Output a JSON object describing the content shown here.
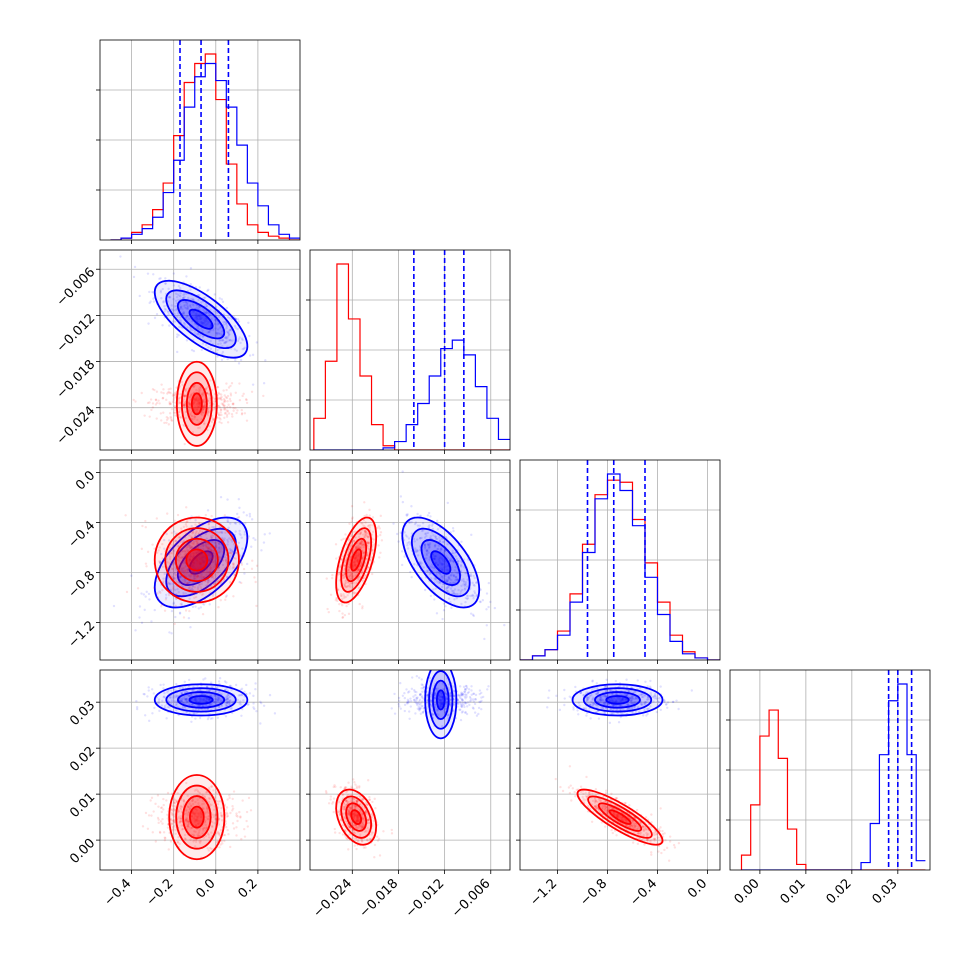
{
  "chart_data": {
    "type": "corner",
    "ndim": 4,
    "grid": true,
    "series": [
      {
        "color": "#0000ff",
        "mean": [
          -0.07,
          -0.0125,
          -0.72,
          0.0305
        ],
        "sd": [
          0.11,
          0.0025,
          0.18,
          0.0017
        ],
        "corr": [
          [
            1,
            -0.7,
            0.55,
            0.0
          ],
          [
            -0.7,
            1,
            -0.6,
            0.0
          ],
          [
            0.55,
            -0.6,
            1,
            0.0
          ],
          [
            0.0,
            0.0,
            0.0,
            1
          ]
        ],
        "quantiles_16_50_84": [
          [
            -0.17,
            -0.07,
            0.06
          ],
          [
            -0.016,
            -0.012,
            -0.0095
          ],
          [
            -0.96,
            -0.75,
            -0.5
          ],
          [
            0.028,
            0.03,
            0.033
          ]
        ]
      },
      {
        "color": "#ff0000",
        "mean": [
          -0.09,
          -0.0235,
          -0.7,
          0.005
        ],
        "sd": [
          0.1,
          0.0013,
          0.17,
          0.003
        ],
        "corr": [
          [
            1,
            0.0,
            0.0,
            0.0
          ],
          [
            0.0,
            1,
            0.55,
            -0.35
          ],
          [
            0.0,
            0.55,
            1,
            -0.85
          ],
          [
            0.0,
            -0.35,
            -0.85,
            1
          ]
        ]
      }
    ],
    "axes": [
      {
        "range": [
          -0.55,
          0.4
        ],
        "ticks": [
          -0.4,
          -0.2,
          0.0,
          0.2
        ],
        "tick_labels": [
          "−0.4",
          "−0.2",
          "0.0",
          "0.2"
        ]
      },
      {
        "range": [
          -0.0295,
          -0.0035
        ],
        "ticks": [
          -0.024,
          -0.018,
          -0.012,
          -0.006
        ],
        "tick_labels": [
          "−0.024",
          "−0.018",
          "−0.012",
          "−0.006"
        ]
      },
      {
        "range": [
          -1.5,
          0.1
        ],
        "ticks": [
          -1.2,
          -0.8,
          -0.4,
          0.0
        ],
        "tick_labels": [
          "−1.2",
          "−0.8",
          "−0.4",
          "0.0"
        ]
      },
      {
        "range": [
          -0.0065,
          0.037
        ],
        "ticks": [
          0.0,
          0.01,
          0.02,
          0.03
        ],
        "tick_labels": [
          "0.00",
          "0.01",
          "0.02",
          "0.03"
        ]
      }
    ],
    "histograms": [
      {
        "bins": [
          -0.5,
          -0.45,
          -0.4,
          -0.35,
          -0.3,
          -0.25,
          -0.2,
          -0.15,
          -0.1,
          -0.05,
          0.0,
          0.05,
          0.1,
          0.15,
          0.2,
          0.25,
          0.3,
          0.35,
          0.4
        ],
        "blue": [
          0,
          0.01,
          0.03,
          0.06,
          0.12,
          0.25,
          0.42,
          0.7,
          0.86,
          0.93,
          0.84,
          0.7,
          0.5,
          0.3,
          0.18,
          0.08,
          0.03,
          0.01
        ],
        "red": [
          0,
          0.01,
          0.04,
          0.08,
          0.16,
          0.3,
          0.55,
          0.83,
          0.93,
          0.98,
          0.74,
          0.4,
          0.19,
          0.08,
          0.04,
          0.02,
          0.01,
          0.0
        ]
      },
      {
        "bins": [
          -0.029,
          -0.0275,
          -0.026,
          -0.0245,
          -0.023,
          -0.0215,
          -0.02,
          -0.0185,
          -0.017,
          -0.0155,
          -0.014,
          -0.0125,
          -0.011,
          -0.0095,
          -0.008,
          -0.0065,
          -0.005,
          -0.0035
        ],
        "blue": [
          0,
          0,
          0,
          0,
          0,
          0,
          0.01,
          0.04,
          0.12,
          0.22,
          0.35,
          0.48,
          0.52,
          0.45,
          0.3,
          0.15,
          0.05
        ],
        "red": [
          0.15,
          0.42,
          0.88,
          0.62,
          0.35,
          0.12,
          0.02,
          0,
          0,
          0,
          0,
          0,
          0,
          0,
          0,
          0,
          0
        ]
      },
      {
        "bins": [
          -1.5,
          -1.4,
          -1.3,
          -1.2,
          -1.1,
          -1.0,
          -0.9,
          -0.8,
          -0.7,
          -0.6,
          -0.5,
          -0.4,
          -0.3,
          -0.2,
          -0.1,
          0.0,
          0.1
        ],
        "blue": [
          0,
          0.02,
          0.05,
          0.12,
          0.28,
          0.52,
          0.78,
          0.9,
          0.82,
          0.65,
          0.4,
          0.22,
          0.09,
          0.03,
          0.01,
          0
        ],
        "red": [
          0,
          0.02,
          0.05,
          0.14,
          0.32,
          0.56,
          0.8,
          0.87,
          0.86,
          0.68,
          0.47,
          0.28,
          0.12,
          0.04,
          0.01,
          0
        ]
      },
      {
        "bins": [
          -0.004,
          -0.002,
          0.0,
          0.002,
          0.004,
          0.006,
          0.008,
          0.01,
          0.012,
          0.014,
          0.016,
          0.018,
          0.02,
          0.022,
          0.024,
          0.026,
          0.028,
          0.03,
          0.032,
          0.034,
          0.036
        ],
        "blue": [
          0,
          0,
          0,
          0,
          0,
          0,
          0,
          0,
          0,
          0,
          0,
          0,
          0,
          0.04,
          0.25,
          0.62,
          0.91,
          1.0,
          0.62,
          0.05
        ],
        "red": [
          0.08,
          0.35,
          0.72,
          0.86,
          0.6,
          0.22,
          0.03,
          0,
          0,
          0,
          0,
          0,
          0,
          0,
          0,
          0,
          0,
          0,
          0,
          0
        ]
      }
    ]
  }
}
